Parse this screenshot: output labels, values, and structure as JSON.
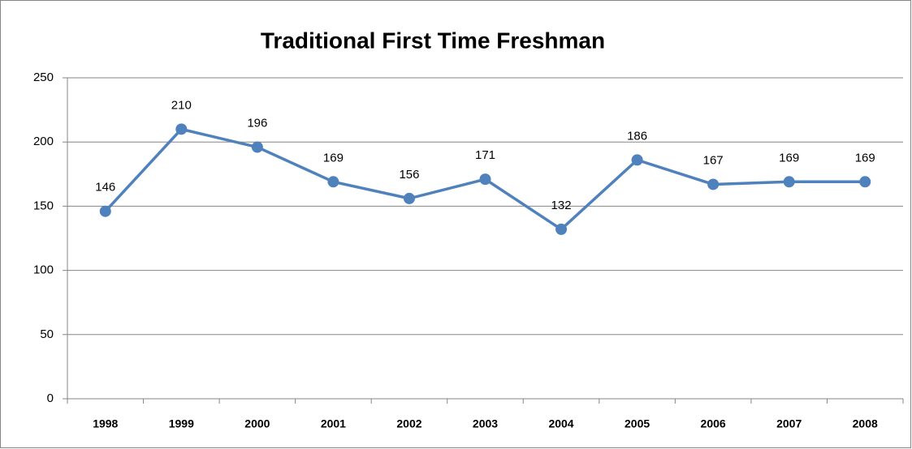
{
  "chart_data": {
    "type": "line",
    "title": "Traditional First Time Freshman",
    "categories": [
      "1998",
      "1999",
      "2000",
      "2001",
      "2002",
      "2003",
      "2004",
      "2005",
      "2006",
      "2007",
      "2008"
    ],
    "values": [
      146,
      210,
      196,
      169,
      156,
      171,
      132,
      186,
      167,
      169,
      169
    ],
    "color": "#4f81bd",
    "ylim": [
      0,
      250
    ],
    "yticks": [
      0,
      50,
      100,
      150,
      200,
      250
    ],
    "grid": true
  }
}
